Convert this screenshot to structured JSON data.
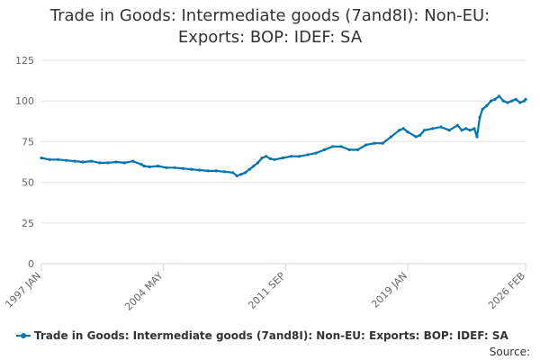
{
  "chart_data": {
    "type": "line",
    "title": "Trade in Goods: Intermediate goods (7and8I): Non-EU: Exports: BOP: IDEF: SA",
    "title_lines": [
      "Trade in Goods: Intermediate goods (7and8I): Non-EU:",
      "Exports: BOP: IDEF: SA"
    ],
    "xlabel": "",
    "ylabel": "",
    "ylim": [
      0,
      125
    ],
    "yticks": [
      0,
      25,
      50,
      75,
      100,
      125
    ],
    "xlim": [
      "1997-01",
      "2026-02"
    ],
    "xticks": [
      "1997 JAN",
      "2004 MAY",
      "2011 SEP",
      "2019 JAN",
      "2026 FEB"
    ],
    "grid": "horizontal",
    "legend": "bottom",
    "series_color": "#0075b0",
    "series": [
      {
        "name": "Trade in Goods: Intermediate goods (7and8I): Non-EU: Exports: BOP: IDEF: SA",
        "points": [
          [
            "1997-01",
            65
          ],
          [
            "1997-07",
            64
          ],
          [
            "1998-01",
            64
          ],
          [
            "1998-07",
            63.5
          ],
          [
            "1999-01",
            63
          ],
          [
            "1999-07",
            62.5
          ],
          [
            "2000-01",
            63
          ],
          [
            "2000-07",
            62
          ],
          [
            "2001-01",
            62
          ],
          [
            "2001-07",
            62.5
          ],
          [
            "2002-01",
            62
          ],
          [
            "2002-07",
            63
          ],
          [
            "2003-01",
            61
          ],
          [
            "2003-03",
            60
          ],
          [
            "2003-07",
            59.5
          ],
          [
            "2004-01",
            60
          ],
          [
            "2004-07",
            59
          ],
          [
            "2005-01",
            59
          ],
          [
            "2005-07",
            58.5
          ],
          [
            "2006-01",
            58
          ],
          [
            "2006-07",
            57.5
          ],
          [
            "2007-01",
            57
          ],
          [
            "2007-07",
            57
          ],
          [
            "2008-01",
            56.5
          ],
          [
            "2008-07",
            56
          ],
          [
            "2008-10",
            54
          ],
          [
            "2009-01",
            55
          ],
          [
            "2009-04",
            56
          ],
          [
            "2009-07",
            58
          ],
          [
            "2009-10",
            60
          ],
          [
            "2010-01",
            62
          ],
          [
            "2010-04",
            65
          ],
          [
            "2010-07",
            66
          ],
          [
            "2010-10",
            64.5
          ],
          [
            "2011-01",
            64
          ],
          [
            "2011-07",
            65
          ],
          [
            "2012-01",
            66
          ],
          [
            "2012-07",
            66
          ],
          [
            "2013-01",
            67
          ],
          [
            "2013-07",
            68
          ],
          [
            "2014-01",
            70
          ],
          [
            "2014-07",
            72
          ],
          [
            "2015-01",
            72
          ],
          [
            "2015-07",
            70
          ],
          [
            "2016-01",
            70
          ],
          [
            "2016-07",
            73
          ],
          [
            "2017-01",
            74
          ],
          [
            "2017-07",
            74
          ],
          [
            "2018-01",
            78
          ],
          [
            "2018-07",
            82
          ],
          [
            "2018-10",
            83
          ],
          [
            "2019-01",
            81
          ],
          [
            "2019-07",
            78
          ],
          [
            "2019-10",
            79
          ],
          [
            "2020-01",
            82
          ],
          [
            "2020-07",
            83
          ],
          [
            "2021-01",
            84
          ],
          [
            "2021-07",
            82
          ],
          [
            "2022-01",
            85
          ],
          [
            "2022-04",
            82
          ],
          [
            "2022-07",
            83
          ],
          [
            "2022-10",
            82
          ],
          [
            "2023-01",
            83
          ],
          [
            "2023-03",
            78
          ],
          [
            "2023-05",
            90
          ],
          [
            "2023-07",
            95
          ],
          [
            "2023-10",
            97
          ],
          [
            "2024-01",
            100
          ],
          [
            "2024-04",
            101
          ],
          [
            "2024-07",
            103
          ],
          [
            "2024-10",
            100
          ],
          [
            "2025-01",
            99
          ],
          [
            "2025-04",
            100
          ],
          [
            "2025-07",
            101
          ],
          [
            "2025-10",
            99
          ],
          [
            "2026-01",
            100
          ],
          [
            "2026-02",
            101
          ]
        ]
      }
    ],
    "source_label": "Source:"
  }
}
